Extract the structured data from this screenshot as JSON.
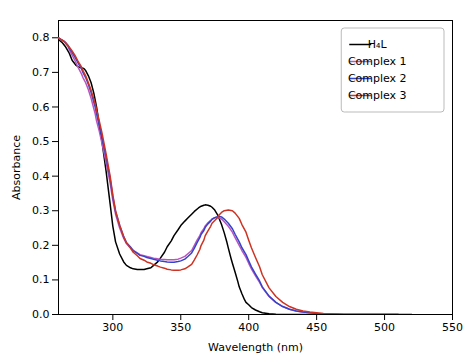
{
  "chart_data": {
    "type": "line",
    "xlabel": "Wavelength (nm)",
    "ylabel": "Absorbance",
    "xlim": [
      260,
      550
    ],
    "ylim": [
      0.0,
      0.85
    ],
    "xticks": [
      300,
      350,
      400,
      450,
      500,
      550
    ],
    "yticks": [
      {
        "value": 0.0,
        "label": "0.0"
      },
      0.1,
      0.2,
      0.3,
      0.4,
      0.5,
      0.6,
      0.7,
      0.8
    ],
    "grid": false,
    "legend": "upper right",
    "series": [
      {
        "name": "H₄L",
        "color": "#000000",
        "x": [
          260,
          263,
          265,
          268,
          270,
          273,
          275,
          277,
          278,
          279,
          280,
          282,
          284,
          286,
          288,
          290,
          292,
          295,
          298,
          300,
          302,
          305,
          308,
          310,
          313,
          315,
          318,
          320,
          323,
          325,
          328,
          330,
          333,
          335,
          338,
          340,
          343,
          345,
          348,
          350,
          353,
          355,
          358,
          360,
          363,
          365,
          367,
          368,
          370,
          372,
          373,
          375,
          377,
          378,
          380,
          382,
          384,
          385,
          387,
          388,
          390,
          392,
          393,
          395,
          397,
          398,
          400,
          402,
          405,
          408,
          410,
          415,
          420,
          430,
          440,
          450,
          460,
          470,
          480,
          490,
          500,
          510,
          520
        ],
        "values": [
          0.795,
          0.785,
          0.775,
          0.755,
          0.735,
          0.72,
          0.715,
          0.713,
          0.712,
          0.71,
          0.705,
          0.69,
          0.67,
          0.64,
          0.6,
          0.55,
          0.5,
          0.415,
          0.32,
          0.255,
          0.21,
          0.175,
          0.152,
          0.142,
          0.135,
          0.132,
          0.13,
          0.13,
          0.13,
          0.132,
          0.135,
          0.142,
          0.152,
          0.163,
          0.18,
          0.196,
          0.213,
          0.228,
          0.245,
          0.257,
          0.27,
          0.278,
          0.29,
          0.298,
          0.308,
          0.313,
          0.316,
          0.317,
          0.316,
          0.313,
          0.31,
          0.302,
          0.289,
          0.28,
          0.26,
          0.236,
          0.208,
          0.192,
          0.162,
          0.148,
          0.122,
          0.095,
          0.08,
          0.06,
          0.042,
          0.035,
          0.028,
          0.02,
          0.013,
          0.008,
          0.005,
          0.002,
          0.001,
          0.0,
          0.0,
          0.0,
          0.0,
          0.0,
          0.0,
          0.0,
          0.0,
          0.0,
          0.0
        ]
      },
      {
        "name": "Complex 1",
        "color": "#bb55bb",
        "x": [
          260,
          262,
          264,
          265,
          267,
          268,
          270,
          272,
          274,
          275,
          277,
          278,
          280,
          282,
          284,
          285,
          287,
          288,
          290,
          292,
          295,
          298,
          300,
          302,
          305,
          308,
          310,
          313,
          315,
          318,
          320,
          323,
          325,
          328,
          330,
          333,
          335,
          338,
          340,
          343,
          345,
          348,
          350,
          353,
          355,
          358,
          360,
          362,
          364,
          365,
          367,
          368,
          370,
          372,
          373,
          375,
          377,
          378,
          380,
          382,
          385,
          388,
          390,
          393,
          395,
          398,
          400,
          402,
          405,
          408,
          410,
          415,
          420,
          425,
          430,
          435,
          440,
          445,
          450,
          455,
          460,
          465,
          470,
          480,
          490,
          500,
          510
        ],
        "values": [
          0.8,
          0.795,
          0.79,
          0.785,
          0.775,
          0.765,
          0.75,
          0.735,
          0.718,
          0.71,
          0.695,
          0.685,
          0.67,
          0.65,
          0.625,
          0.61,
          0.58,
          0.56,
          0.53,
          0.495,
          0.44,
          0.38,
          0.33,
          0.29,
          0.25,
          0.22,
          0.205,
          0.192,
          0.185,
          0.178,
          0.173,
          0.17,
          0.168,
          0.165,
          0.163,
          0.161,
          0.16,
          0.159,
          0.158,
          0.158,
          0.158,
          0.16,
          0.163,
          0.168,
          0.175,
          0.185,
          0.2,
          0.215,
          0.228,
          0.237,
          0.248,
          0.256,
          0.265,
          0.272,
          0.276,
          0.28,
          0.281,
          0.28,
          0.276,
          0.268,
          0.255,
          0.238,
          0.222,
          0.2,
          0.185,
          0.165,
          0.148,
          0.132,
          0.112,
          0.093,
          0.078,
          0.052,
          0.035,
          0.023,
          0.015,
          0.01,
          0.007,
          0.005,
          0.003,
          0.002,
          0.001,
          0.001,
          0.0,
          0.0,
          0.0,
          0.0,
          0.0
        ]
      },
      {
        "name": "Complex 2",
        "color": "#3344cc",
        "x": [
          260,
          262,
          264,
          265,
          267,
          268,
          270,
          272,
          274,
          275,
          277,
          278,
          280,
          282,
          284,
          285,
          287,
          288,
          290,
          292,
          295,
          298,
          300,
          302,
          305,
          308,
          310,
          313,
          315,
          318,
          320,
          323,
          325,
          328,
          330,
          333,
          335,
          338,
          340,
          343,
          345,
          348,
          350,
          353,
          355,
          358,
          360,
          362,
          364,
          365,
          367,
          368,
          370,
          372,
          373,
          375,
          377,
          378,
          380,
          382,
          385,
          388,
          390,
          393,
          395,
          398,
          400,
          402,
          405,
          408,
          410,
          415,
          420,
          425,
          430,
          435,
          440,
          445,
          450,
          455,
          460,
          465,
          470,
          480,
          490,
          500,
          510
        ],
        "values": [
          0.8,
          0.795,
          0.79,
          0.787,
          0.778,
          0.77,
          0.758,
          0.745,
          0.73,
          0.723,
          0.71,
          0.7,
          0.685,
          0.665,
          0.642,
          0.628,
          0.6,
          0.58,
          0.548,
          0.513,
          0.455,
          0.393,
          0.34,
          0.298,
          0.258,
          0.225,
          0.208,
          0.195,
          0.185,
          0.177,
          0.171,
          0.168,
          0.165,
          0.162,
          0.16,
          0.157,
          0.155,
          0.153,
          0.152,
          0.151,
          0.151,
          0.153,
          0.155,
          0.16,
          0.167,
          0.178,
          0.192,
          0.208,
          0.222,
          0.232,
          0.243,
          0.252,
          0.262,
          0.27,
          0.275,
          0.28,
          0.283,
          0.284,
          0.282,
          0.276,
          0.264,
          0.248,
          0.232,
          0.21,
          0.193,
          0.173,
          0.155,
          0.138,
          0.117,
          0.097,
          0.08,
          0.053,
          0.035,
          0.023,
          0.015,
          0.01,
          0.007,
          0.005,
          0.003,
          0.002,
          0.001,
          0.001,
          0.0,
          0.0,
          0.0,
          0.0,
          0.0
        ]
      },
      {
        "name": "Complex 3",
        "color": "#cc3322",
        "x": [
          260,
          262,
          264,
          265,
          267,
          268,
          270,
          272,
          274,
          275,
          277,
          278,
          280,
          282,
          284,
          285,
          287,
          288,
          290,
          292,
          295,
          298,
          300,
          302,
          305,
          308,
          310,
          313,
          315,
          318,
          320,
          323,
          325,
          328,
          330,
          333,
          335,
          338,
          340,
          343,
          345,
          348,
          350,
          353,
          355,
          358,
          360,
          362,
          364,
          365,
          367,
          368,
          370,
          372,
          373,
          375,
          377,
          378,
          380,
          382,
          385,
          388,
          390,
          393,
          395,
          398,
          400,
          402,
          405,
          408,
          410,
          415,
          420,
          425,
          430,
          435,
          440,
          445,
          450,
          455,
          460,
          465,
          470,
          480,
          490,
          500,
          510
        ],
        "values": [
          0.8,
          0.795,
          0.79,
          0.787,
          0.778,
          0.773,
          0.762,
          0.75,
          0.735,
          0.728,
          0.715,
          0.705,
          0.69,
          0.67,
          0.648,
          0.635,
          0.61,
          0.592,
          0.56,
          0.525,
          0.465,
          0.4,
          0.345,
          0.3,
          0.258,
          0.225,
          0.207,
          0.192,
          0.18,
          0.17,
          0.162,
          0.157,
          0.152,
          0.148,
          0.144,
          0.14,
          0.137,
          0.134,
          0.131,
          0.129,
          0.128,
          0.128,
          0.129,
          0.132,
          0.137,
          0.145,
          0.158,
          0.172,
          0.188,
          0.2,
          0.215,
          0.228,
          0.242,
          0.255,
          0.264,
          0.272,
          0.28,
          0.287,
          0.295,
          0.3,
          0.302,
          0.3,
          0.293,
          0.278,
          0.26,
          0.238,
          0.215,
          0.193,
          0.165,
          0.138,
          0.115,
          0.077,
          0.052,
          0.035,
          0.023,
          0.015,
          0.01,
          0.007,
          0.005,
          0.003,
          0.002,
          0.001,
          0.0,
          0.0,
          0.0,
          0.0,
          0.0
        ]
      }
    ]
  }
}
